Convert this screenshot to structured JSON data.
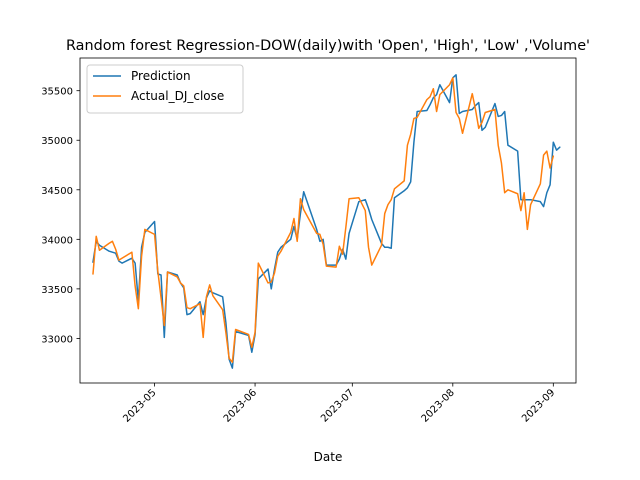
{
  "chart_data": {
    "type": "line",
    "title": "Random forest Regression-DOW(daily)with 'Open', 'High', 'Low' ,'Volume'",
    "xlabel": "Date",
    "ylabel": "",
    "xlim": [
      "2023-04-08",
      "2023-09-08"
    ],
    "ylim": [
      32550,
      35830
    ],
    "x_ticks": [
      "2023-05-01",
      "2023-06-01",
      "2023-07-01",
      "2023-08-01",
      "2023-09-01"
    ],
    "x_tick_labels": [
      "2023-05",
      "2023-06",
      "2023-07",
      "2023-08",
      "2023-09"
    ],
    "y_ticks": [
      33000,
      33500,
      34000,
      34500,
      35000,
      35500
    ],
    "y_tick_labels": [
      "33000",
      "33500",
      "34000",
      "34500",
      "35000",
      "35500"
    ],
    "legend_position": "top-left",
    "grid": false,
    "series": [
      {
        "name": "Prediction",
        "color": "#1f77b4",
        "points": [
          [
            "2023-04-12",
            33770
          ],
          [
            "2023-04-13",
            33980
          ],
          [
            "2023-04-14",
            33940
          ],
          [
            "2023-04-17",
            33880
          ],
          [
            "2023-04-18",
            33870
          ],
          [
            "2023-04-19",
            33860
          ],
          [
            "2023-04-20",
            33780
          ],
          [
            "2023-04-21",
            33760
          ],
          [
            "2023-04-24",
            33810
          ],
          [
            "2023-04-25",
            33760
          ],
          [
            "2023-04-26",
            33380
          ],
          [
            "2023-04-27",
            33920
          ],
          [
            "2023-04-28",
            34070
          ],
          [
            "2023-05-01",
            34180
          ],
          [
            "2023-05-02",
            33650
          ],
          [
            "2023-05-03",
            33640
          ],
          [
            "2023-05-04",
            33010
          ],
          [
            "2023-05-05",
            33670
          ],
          [
            "2023-05-08",
            33640
          ],
          [
            "2023-05-09",
            33560
          ],
          [
            "2023-05-10",
            33510
          ],
          [
            "2023-05-11",
            33240
          ],
          [
            "2023-05-12",
            33250
          ],
          [
            "2023-05-15",
            33370
          ],
          [
            "2023-05-16",
            33240
          ],
          [
            "2023-05-17",
            33410
          ],
          [
            "2023-05-18",
            33480
          ],
          [
            "2023-05-19",
            33460
          ],
          [
            "2023-05-22",
            33420
          ],
          [
            "2023-05-23",
            33160
          ],
          [
            "2023-05-24",
            32790
          ],
          [
            "2023-05-25",
            32700
          ],
          [
            "2023-05-26",
            33070
          ],
          [
            "2023-05-30",
            33030
          ],
          [
            "2023-05-31",
            32860
          ],
          [
            "2023-06-01",
            33040
          ],
          [
            "2023-06-02",
            33600
          ],
          [
            "2023-06-05",
            33700
          ],
          [
            "2023-06-06",
            33500
          ],
          [
            "2023-06-07",
            33700
          ],
          [
            "2023-06-08",
            33870
          ],
          [
            "2023-06-09",
            33920
          ],
          [
            "2023-06-12",
            34000
          ],
          [
            "2023-06-13",
            34130
          ],
          [
            "2023-06-14",
            34000
          ],
          [
            "2023-06-15",
            34260
          ],
          [
            "2023-06-16",
            34480
          ],
          [
            "2023-06-20",
            34100
          ],
          [
            "2023-06-21",
            33980
          ],
          [
            "2023-06-22",
            34000
          ],
          [
            "2023-06-23",
            33740
          ],
          [
            "2023-06-26",
            33740
          ],
          [
            "2023-06-27",
            33800
          ],
          [
            "2023-06-28",
            33900
          ],
          [
            "2023-06-29",
            33800
          ],
          [
            "2023-06-30",
            34060
          ],
          [
            "2023-07-03",
            34380
          ],
          [
            "2023-07-05",
            34400
          ],
          [
            "2023-07-06",
            34310
          ],
          [
            "2023-07-07",
            34200
          ],
          [
            "2023-07-10",
            33960
          ],
          [
            "2023-07-11",
            33920
          ],
          [
            "2023-07-12",
            33920
          ],
          [
            "2023-07-13",
            33910
          ],
          [
            "2023-07-14",
            34420
          ],
          [
            "2023-07-17",
            34490
          ],
          [
            "2023-07-18",
            34520
          ],
          [
            "2023-07-19",
            34580
          ],
          [
            "2023-07-20",
            34980
          ],
          [
            "2023-07-21",
            35290
          ],
          [
            "2023-07-24",
            35300
          ],
          [
            "2023-07-25",
            35360
          ],
          [
            "2023-07-26",
            35430
          ],
          [
            "2023-07-27",
            35460
          ],
          [
            "2023-07-28",
            35560
          ],
          [
            "2023-07-31",
            35380
          ],
          [
            "2023-08-01",
            35630
          ],
          [
            "2023-08-02",
            35660
          ],
          [
            "2023-08-03",
            35270
          ],
          [
            "2023-08-04",
            35290
          ],
          [
            "2023-08-07",
            35310
          ],
          [
            "2023-08-08",
            35350
          ],
          [
            "2023-08-09",
            35380
          ],
          [
            "2023-08-10",
            35100
          ],
          [
            "2023-08-11",
            35130
          ],
          [
            "2023-08-14",
            35370
          ],
          [
            "2023-08-15",
            35240
          ],
          [
            "2023-08-16",
            35250
          ],
          [
            "2023-08-17",
            35290
          ],
          [
            "2023-08-18",
            34950
          ],
          [
            "2023-08-21",
            34890
          ],
          [
            "2023-08-22",
            34400
          ],
          [
            "2023-08-23",
            34400
          ],
          [
            "2023-08-24",
            34400
          ],
          [
            "2023-08-25",
            34400
          ],
          [
            "2023-08-28",
            34380
          ],
          [
            "2023-08-29",
            34330
          ],
          [
            "2023-08-30",
            34470
          ],
          [
            "2023-08-31",
            34550
          ],
          [
            "2023-09-01",
            34980
          ],
          [
            "2023-09-02",
            34900
          ],
          [
            "2023-09-03",
            34930
          ]
        ]
      },
      {
        "name": "Actual_DJ_close",
        "color": "#ff7f0e",
        "points": [
          [
            "2023-04-12",
            33650
          ],
          [
            "2023-04-13",
            34030
          ],
          [
            "2023-04-14",
            33890
          ],
          [
            "2023-04-17",
            33960
          ],
          [
            "2023-04-18",
            33980
          ],
          [
            "2023-04-19",
            33900
          ],
          [
            "2023-04-20",
            33790
          ],
          [
            "2023-04-21",
            33810
          ],
          [
            "2023-04-24",
            33870
          ],
          [
            "2023-04-25",
            33530
          ],
          [
            "2023-04-26",
            33300
          ],
          [
            "2023-04-27",
            33830
          ],
          [
            "2023-04-28",
            34100
          ],
          [
            "2023-05-01",
            34050
          ],
          [
            "2023-05-02",
            33680
          ],
          [
            "2023-05-03",
            33410
          ],
          [
            "2023-05-04",
            33130
          ],
          [
            "2023-05-05",
            33670
          ],
          [
            "2023-05-08",
            33620
          ],
          [
            "2023-05-09",
            33560
          ],
          [
            "2023-05-10",
            33530
          ],
          [
            "2023-05-11",
            33310
          ],
          [
            "2023-05-12",
            33300
          ],
          [
            "2023-05-15",
            33350
          ],
          [
            "2023-05-16",
            33010
          ],
          [
            "2023-05-17",
            33420
          ],
          [
            "2023-05-18",
            33540
          ],
          [
            "2023-05-19",
            33430
          ],
          [
            "2023-05-22",
            33290
          ],
          [
            "2023-05-23",
            33060
          ],
          [
            "2023-05-24",
            32800
          ],
          [
            "2023-05-25",
            32760
          ],
          [
            "2023-05-26",
            33090
          ],
          [
            "2023-05-30",
            33040
          ],
          [
            "2023-05-31",
            32910
          ],
          [
            "2023-06-01",
            33060
          ],
          [
            "2023-06-02",
            33760
          ],
          [
            "2023-06-05",
            33560
          ],
          [
            "2023-06-06",
            33570
          ],
          [
            "2023-06-07",
            33660
          ],
          [
            "2023-06-08",
            33830
          ],
          [
            "2023-06-09",
            33880
          ],
          [
            "2023-06-12",
            34070
          ],
          [
            "2023-06-13",
            34210
          ],
          [
            "2023-06-14",
            33980
          ],
          [
            "2023-06-15",
            34410
          ],
          [
            "2023-06-16",
            34300
          ],
          [
            "2023-06-20",
            34060
          ],
          [
            "2023-06-21",
            34050
          ],
          [
            "2023-06-22",
            33950
          ],
          [
            "2023-06-23",
            33730
          ],
          [
            "2023-06-26",
            33720
          ],
          [
            "2023-06-27",
            33930
          ],
          [
            "2023-06-28",
            33850
          ],
          [
            "2023-06-29",
            34120
          ],
          [
            "2023-06-30",
            34410
          ],
          [
            "2023-07-03",
            34420
          ],
          [
            "2023-07-05",
            34290
          ],
          [
            "2023-07-06",
            33920
          ],
          [
            "2023-07-07",
            33740
          ],
          [
            "2023-07-10",
            33940
          ],
          [
            "2023-07-11",
            34260
          ],
          [
            "2023-07-12",
            34350
          ],
          [
            "2023-07-13",
            34400
          ],
          [
            "2023-07-14",
            34510
          ],
          [
            "2023-07-17",
            34590
          ],
          [
            "2023-07-18",
            34950
          ],
          [
            "2023-07-19",
            35060
          ],
          [
            "2023-07-20",
            35220
          ],
          [
            "2023-07-21",
            35230
          ],
          [
            "2023-07-24",
            35410
          ],
          [
            "2023-07-25",
            35440
          ],
          [
            "2023-07-26",
            35520
          ],
          [
            "2023-07-27",
            35290
          ],
          [
            "2023-07-28",
            35460
          ],
          [
            "2023-07-31",
            35560
          ],
          [
            "2023-08-01",
            35630
          ],
          [
            "2023-08-02",
            35280
          ],
          [
            "2023-08-03",
            35220
          ],
          [
            "2023-08-04",
            35070
          ],
          [
            "2023-08-07",
            35470
          ],
          [
            "2023-08-08",
            35310
          ],
          [
            "2023-08-09",
            35120
          ],
          [
            "2023-08-10",
            35180
          ],
          [
            "2023-08-11",
            35280
          ],
          [
            "2023-08-14",
            35310
          ],
          [
            "2023-08-15",
            34950
          ],
          [
            "2023-08-16",
            34770
          ],
          [
            "2023-08-17",
            34470
          ],
          [
            "2023-08-18",
            34500
          ],
          [
            "2023-08-21",
            34460
          ],
          [
            "2023-08-22",
            34290
          ],
          [
            "2023-08-23",
            34470
          ],
          [
            "2023-08-24",
            34100
          ],
          [
            "2023-08-25",
            34350
          ],
          [
            "2023-08-28",
            34560
          ],
          [
            "2023-08-29",
            34850
          ],
          [
            "2023-08-30",
            34890
          ],
          [
            "2023-08-31",
            34720
          ],
          [
            "2023-09-01",
            34840
          ]
        ]
      }
    ]
  }
}
